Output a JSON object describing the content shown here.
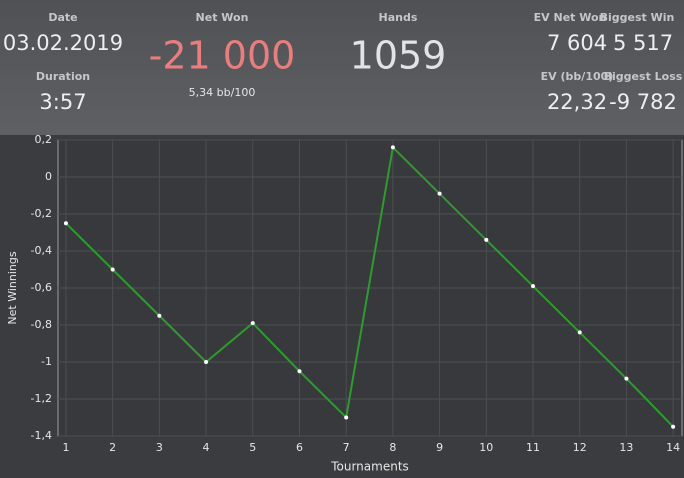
{
  "header": {
    "date": {
      "label": "Date",
      "value": "03.02.2019"
    },
    "duration": {
      "label": "Duration",
      "value": "3:57"
    },
    "net_won": {
      "label": "Net Won",
      "value": "-21 000",
      "sub": "5,34 bb/100"
    },
    "hands": {
      "label": "Hands",
      "value": "1059"
    },
    "ev_net_won": {
      "label": "EV Net Won",
      "value": "7 604"
    },
    "biggest_win": {
      "label": "Biggest Win",
      "value": "5 517"
    },
    "ev_bb100": {
      "label": "EV (bb/100)",
      "value": "22,32"
    },
    "biggest_loss": {
      "label": "Biggest Loss",
      "value": "-9 782"
    }
  },
  "chart_data": {
    "type": "line",
    "x_label": "Tournaments",
    "y_label": "Net Winnings",
    "x": [
      1,
      2,
      3,
      4,
      5,
      6,
      7,
      8,
      9,
      10,
      11,
      12,
      13,
      14
    ],
    "series": [
      {
        "name": "Net Winnings",
        "color": "#2f9a2f",
        "values": [
          -0.25,
          -0.5,
          -0.75,
          -1.0,
          -0.79,
          -1.05,
          -1.3,
          0.16,
          -0.09,
          -0.34,
          -0.59,
          -0.84,
          -1.09,
          -1.35
        ]
      }
    ],
    "xlim": [
      0.83,
      14.19
    ],
    "ylim": [
      -1.4,
      0.2
    ],
    "xticks": [
      1,
      2,
      3,
      4,
      5,
      6,
      7,
      8,
      9,
      10,
      11,
      12,
      13,
      14
    ],
    "yticks": [
      {
        "value": 0.2,
        "label": "0,2"
      },
      0,
      {
        "value": -0.2,
        "label": "-0,2"
      },
      {
        "value": -0.4,
        "label": "-0,4"
      },
      {
        "value": -0.6,
        "label": "-0,6"
      },
      {
        "value": -0.8,
        "label": "-0,8"
      },
      -1,
      {
        "value": -1.2,
        "label": "-1,2"
      },
      {
        "value": -1.4,
        "label": "-1,4"
      }
    ],
    "grid": true
  }
}
